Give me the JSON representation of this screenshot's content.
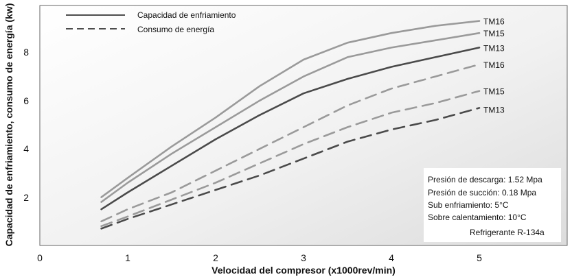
{
  "chart_data": {
    "type": "line",
    "xlabel": "Velocidad del compresor (x1000rev/min)",
    "ylabel": "Capacidad de enfriamiento, consumo de energía (kw)",
    "xlim": [
      0,
      6
    ],
    "ylim": [
      0,
      10
    ],
    "x_ticks": [
      "0",
      "1",
      "2",
      "3",
      "4",
      "5"
    ],
    "y_ticks": [
      "2",
      "4",
      "6",
      "8"
    ],
    "legend": [
      {
        "label": "Capacidad de enfriamiento",
        "style": "solid"
      },
      {
        "label": "Consumo de energía",
        "style": "dashed"
      }
    ],
    "conditions": [
      "Presión de descarga: 1.52 Mpa",
      "Presión de succión: 0.18 Mpa",
      "Sub enfriamiento: 5°C",
      "Sobre calentamiento: 10°C",
      "Refrigerante R-134a"
    ],
    "series": [
      {
        "name": "TM16",
        "group": "capacity",
        "style": "solid",
        "color": "#9a9a9a",
        "x": [
          0.7,
          1.0,
          1.5,
          2.0,
          2.5,
          3.0,
          3.5,
          4.0,
          4.5,
          5.0
        ],
        "y": [
          2.0,
          2.8,
          4.1,
          5.3,
          6.6,
          7.7,
          8.4,
          8.8,
          9.1,
          9.3
        ]
      },
      {
        "name": "TM15",
        "group": "capacity",
        "style": "solid",
        "color": "#9a9a9a",
        "x": [
          0.7,
          1.0,
          1.5,
          2.0,
          2.5,
          3.0,
          3.5,
          4.0,
          4.5,
          5.0
        ],
        "y": [
          1.8,
          2.6,
          3.8,
          4.9,
          6.0,
          7.0,
          7.8,
          8.2,
          8.5,
          8.8
        ]
      },
      {
        "name": "TM13",
        "group": "capacity",
        "style": "solid",
        "color": "#4a4a4a",
        "x": [
          0.7,
          1.0,
          1.5,
          2.0,
          2.5,
          3.0,
          3.5,
          4.0,
          4.5,
          5.0
        ],
        "y": [
          1.5,
          2.2,
          3.3,
          4.4,
          5.4,
          6.3,
          6.9,
          7.4,
          7.8,
          8.2
        ]
      },
      {
        "name": "TM16",
        "group": "energy",
        "style": "dashed",
        "color": "#9a9a9a",
        "x": [
          0.7,
          1.0,
          1.5,
          2.0,
          2.5,
          3.0,
          3.5,
          4.0,
          4.5,
          5.0
        ],
        "y": [
          1.0,
          1.5,
          2.2,
          3.1,
          4.0,
          4.9,
          5.8,
          6.5,
          7.0,
          7.5
        ]
      },
      {
        "name": "TM15",
        "group": "energy",
        "style": "dashed",
        "color": "#9a9a9a",
        "x": [
          0.7,
          1.0,
          1.5,
          2.0,
          2.5,
          3.0,
          3.5,
          4.0,
          4.5,
          5.0
        ],
        "y": [
          0.8,
          1.2,
          1.9,
          2.6,
          3.4,
          4.2,
          4.9,
          5.5,
          5.9,
          6.4
        ]
      },
      {
        "name": "TM13",
        "group": "energy",
        "style": "dashed",
        "color": "#4a4a4a",
        "x": [
          0.7,
          1.0,
          1.5,
          2.0,
          2.5,
          3.0,
          3.5,
          4.0,
          4.5,
          5.0
        ],
        "y": [
          0.7,
          1.1,
          1.7,
          2.3,
          2.9,
          3.6,
          4.3,
          4.8,
          5.2,
          5.7
        ]
      }
    ]
  }
}
